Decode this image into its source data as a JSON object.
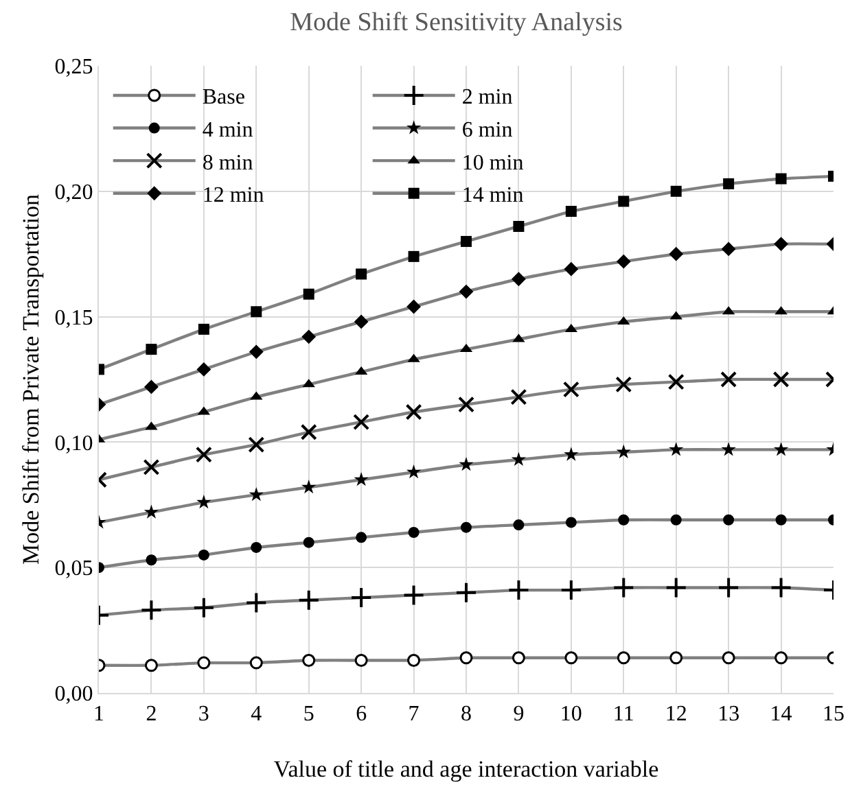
{
  "chart_data": {
    "type": "line",
    "title": "Mode Shift Sensitivity Analysis",
    "xlabel": "Value of title and age interaction variable",
    "ylabel": "Mode Shift from Private Transportation",
    "x": [
      1,
      2,
      3,
      4,
      5,
      6,
      7,
      8,
      9,
      10,
      11,
      12,
      13,
      14,
      15
    ],
    "xlim": [
      1,
      15
    ],
    "xticks": [
      1,
      2,
      3,
      4,
      5,
      6,
      7,
      8,
      9,
      10,
      11,
      12,
      13,
      14,
      15
    ],
    "ylim": [
      0,
      0.25
    ],
    "yticks": [
      {
        "value": 0,
        "label": "0,00"
      },
      {
        "value": 0.05,
        "label": "0,05"
      },
      {
        "value": 0.1,
        "label": "0,10"
      },
      {
        "value": 0.15,
        "label": "0,15"
      },
      {
        "value": 0.2,
        "label": "0,20"
      },
      {
        "value": 0.25,
        "label": "0,25"
      }
    ],
    "grid": true,
    "legend": "top left",
    "line_style": "solid",
    "series": [
      {
        "name": "Base",
        "color": "#808080",
        "marker": "circle",
        "values": [
          0.011,
          0.011,
          0.012,
          0.012,
          0.013,
          0.013,
          0.013,
          0.014,
          0.014,
          0.014,
          0.014,
          0.014,
          0.014,
          0.014,
          0.014
        ]
      },
      {
        "name": "2 min",
        "color": "#808080",
        "marker": "cross",
        "values": [
          0.031,
          0.033,
          0.034,
          0.036,
          0.037,
          0.038,
          0.039,
          0.04,
          0.041,
          0.041,
          0.042,
          0.042,
          0.042,
          0.042,
          0.041
        ]
      },
      {
        "name": "4 min",
        "color": "#808080",
        "marker": "circle",
        "values": [
          0.05,
          0.053,
          0.055,
          0.058,
          0.06,
          0.062,
          0.064,
          0.066,
          0.067,
          0.068,
          0.069,
          0.069,
          0.069,
          0.069,
          0.069
        ]
      },
      {
        "name": "6 min",
        "color": "#808080",
        "marker": "star",
        "values": [
          0.068,
          0.072,
          0.076,
          0.079,
          0.082,
          0.085,
          0.088,
          0.091,
          0.093,
          0.095,
          0.096,
          0.097,
          0.097,
          0.097,
          0.097
        ]
      },
      {
        "name": "8 min",
        "color": "#808080",
        "marker": "x",
        "values": [
          0.085,
          0.09,
          0.095,
          0.099,
          0.104,
          0.108,
          0.112,
          0.115,
          0.118,
          0.121,
          0.123,
          0.124,
          0.125,
          0.125,
          0.125
        ]
      },
      {
        "name": "10 min",
        "color": "#808080",
        "marker": "triangle",
        "values": [
          0.101,
          0.106,
          0.112,
          0.118,
          0.123,
          0.128,
          0.133,
          0.137,
          0.141,
          0.145,
          0.148,
          0.15,
          0.152,
          0.152,
          0.152
        ]
      },
      {
        "name": "12 min",
        "color": "#808080",
        "marker": "diamond",
        "values": [
          0.115,
          0.122,
          0.129,
          0.136,
          0.142,
          0.148,
          0.154,
          0.16,
          0.165,
          0.169,
          0.172,
          0.175,
          0.177,
          0.179,
          0.179
        ]
      },
      {
        "name": "14 min",
        "color": "#808080",
        "marker": "square",
        "values": [
          0.129,
          0.137,
          0.145,
          0.152,
          0.159,
          0.167,
          0.174,
          0.18,
          0.186,
          0.192,
          0.196,
          0.2,
          0.203,
          0.205,
          0.206
        ]
      }
    ]
  }
}
